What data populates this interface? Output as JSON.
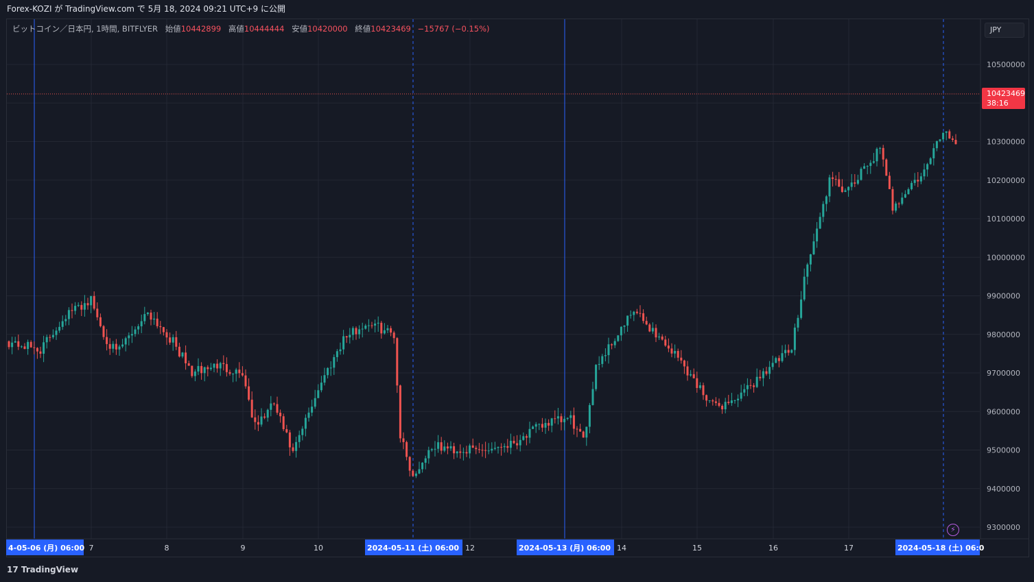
{
  "header": {
    "publish_text": "Forex-KOZI が TradingView.com で 5月 18, 2024 09:21 UTC+9 に公開"
  },
  "legend": {
    "symbol": "ビットコイン／日本円, 1時間, BITFLYER",
    "open_label": "始値",
    "open": "10442899",
    "high_label": "高値",
    "high": "10444444",
    "low_label": "安値",
    "low": "10420000",
    "close_label": "終値",
    "close": "10423469",
    "change": "−15767 (−0.15%)"
  },
  "currency": "JPY",
  "last_price": {
    "value": "10423469",
    "countdown": "38:16"
  },
  "footer": {
    "logo_text": "TradingView"
  },
  "colors": {
    "up": "#26a69a",
    "down": "#ef5350",
    "grid": "#232733",
    "background": "#161a25",
    "session": "#2962ff",
    "highlight": "#2962ff"
  },
  "icons": [
    "lightning-icon",
    "tradingview-logo-icon"
  ],
  "chart_data": {
    "type": "candlestick",
    "timeframe": "1時間",
    "x_tick_labels": [
      "7",
      "8",
      "9",
      "10",
      "12",
      "14",
      "15",
      "16",
      "17"
    ],
    "x_highlight_labels": [
      "4-05-06 (月)   06:00",
      "2024-05-11 (土)   06:00",
      "2024-05-13 (月)   06:00",
      "2024-05-18 (土)   06:0"
    ],
    "y_tick_labels": [
      "10500000",
      "10400000",
      "10300000",
      "10200000",
      "10100000",
      "10000000",
      "9900000",
      "9800000",
      "9700000",
      "9600000",
      "9500000",
      "9400000",
      "9300000"
    ],
    "ylim": [
      9290000,
      10580000
    ],
    "last_price": 10423469,
    "anchors": [
      [
        0,
        9780000
      ],
      [
        10,
        9760000
      ],
      [
        18,
        9850000
      ],
      [
        26,
        9890000
      ],
      [
        30,
        9800000
      ],
      [
        34,
        9750000
      ],
      [
        44,
        9860000
      ],
      [
        52,
        9780000
      ],
      [
        58,
        9700000
      ],
      [
        66,
        9720000
      ],
      [
        74,
        9700000
      ],
      [
        78,
        9560000
      ],
      [
        84,
        9620000
      ],
      [
        90,
        9490000
      ],
      [
        98,
        9660000
      ],
      [
        106,
        9790000
      ],
      [
        114,
        9830000
      ],
      [
        122,
        9800000
      ],
      [
        124,
        9540000
      ],
      [
        128,
        9430000
      ],
      [
        134,
        9510000
      ],
      [
        142,
        9500000
      ],
      [
        150,
        9500000
      ],
      [
        160,
        9520000
      ],
      [
        170,
        9570000
      ],
      [
        178,
        9580000
      ],
      [
        182,
        9520000
      ],
      [
        186,
        9720000
      ],
      [
        192,
        9790000
      ],
      [
        198,
        9860000
      ],
      [
        204,
        9810000
      ],
      [
        212,
        9740000
      ],
      [
        218,
        9670000
      ],
      [
        224,
        9610000
      ],
      [
        232,
        9640000
      ],
      [
        240,
        9710000
      ],
      [
        248,
        9760000
      ],
      [
        252,
        9950000
      ],
      [
        256,
        10070000
      ],
      [
        260,
        10200000
      ],
      [
        266,
        10170000
      ],
      [
        272,
        10240000
      ],
      [
        276,
        10280000
      ],
      [
        280,
        10130000
      ],
      [
        284,
        10170000
      ],
      [
        290,
        10220000
      ],
      [
        296,
        10330000
      ],
      [
        300,
        10300000
      ],
      [
        304,
        10410000
      ],
      [
        310,
        10423469
      ]
    ]
  }
}
